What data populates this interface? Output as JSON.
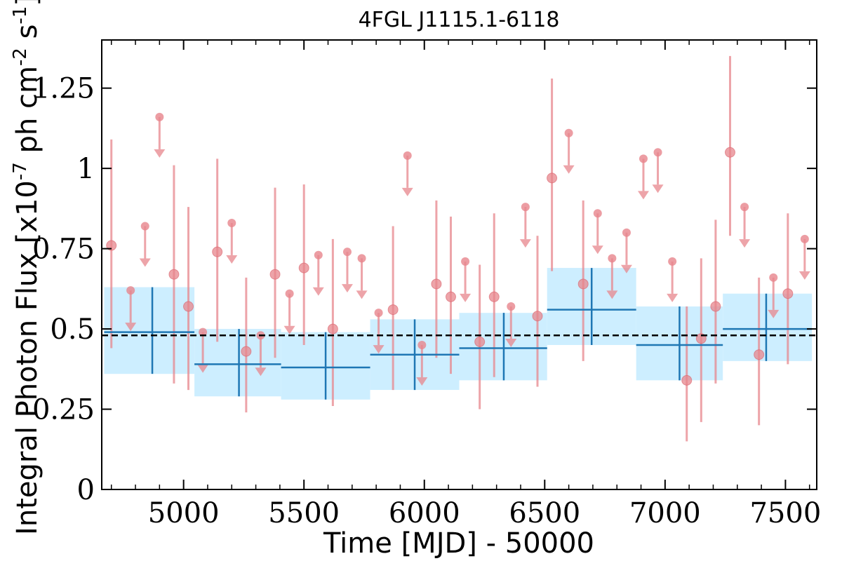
{
  "chart_data": {
    "type": "scatter",
    "title": "4FGL J1115.1-6118",
    "xlabel": "Time [MJD] - 50000",
    "ylabel": "Integral Photon Flux [x10^-7 ph cm^-2 s^-1]",
    "xlim": [
      4660,
      7630
    ],
    "ylim": [
      0,
      1.4
    ],
    "xticks": [
      5000,
      5500,
      6000,
      6500,
      7000,
      7500
    ],
    "xtick_labels": [
      "5000",
      "5500",
      "6000",
      "6500",
      "7000",
      "7500"
    ],
    "yticks": [
      0,
      0.25,
      0.5,
      0.75,
      1,
      1.25
    ],
    "ytick_labels": [
      "0",
      "0.25",
      "0.5",
      "0.75",
      "1",
      "1.25"
    ],
    "grid": false,
    "mean_flux": 0.48,
    "colors": {
      "points": "#e7858c",
      "long_bins": "#1f77b4",
      "band": "#cdeeff",
      "mean_line": "#000000"
    },
    "detections": [
      {
        "x": 4700,
        "y": 0.76,
        "ylo": 0.44,
        "yhi": 1.09
      },
      {
        "x": 4960,
        "y": 0.67,
        "ylo": 0.33,
        "yhi": 1.01
      },
      {
        "x": 5020,
        "y": 0.57,
        "ylo": 0.31,
        "yhi": 0.88
      },
      {
        "x": 5140,
        "y": 0.74,
        "ylo": 0.46,
        "yhi": 1.03
      },
      {
        "x": 5260,
        "y": 0.43,
        "ylo": 0.24,
        "yhi": 0.66
      },
      {
        "x": 5380,
        "y": 0.67,
        "ylo": 0.41,
        "yhi": 0.94
      },
      {
        "x": 5500,
        "y": 0.69,
        "ylo": 0.45,
        "yhi": 0.95
      },
      {
        "x": 5620,
        "y": 0.5,
        "ylo": 0.26,
        "yhi": 0.78
      },
      {
        "x": 5870,
        "y": 0.56,
        "ylo": 0.31,
        "yhi": 0.82
      },
      {
        "x": 6050,
        "y": 0.64,
        "ylo": 0.41,
        "yhi": 0.9
      },
      {
        "x": 6110,
        "y": 0.6,
        "ylo": 0.36,
        "yhi": 0.85
      },
      {
        "x": 6230,
        "y": 0.46,
        "ylo": 0.25,
        "yhi": 0.7
      },
      {
        "x": 6290,
        "y": 0.6,
        "ylo": 0.35,
        "yhi": 0.86
      },
      {
        "x": 6470,
        "y": 0.54,
        "ylo": 0.32,
        "yhi": 0.79
      },
      {
        "x": 6530,
        "y": 0.97,
        "ylo": 0.68,
        "yhi": 1.28
      },
      {
        "x": 6660,
        "y": 0.64,
        "ylo": 0.4,
        "yhi": 0.9
      },
      {
        "x": 7090,
        "y": 0.34,
        "ylo": 0.15,
        "yhi": 0.57
      },
      {
        "x": 7150,
        "y": 0.47,
        "ylo": 0.21,
        "yhi": 0.72
      },
      {
        "x": 7210,
        "y": 0.57,
        "ylo": 0.33,
        "yhi": 0.84
      },
      {
        "x": 7270,
        "y": 1.05,
        "ylo": 0.79,
        "yhi": 1.35
      },
      {
        "x": 7390,
        "y": 0.42,
        "ylo": 0.2,
        "yhi": 0.66
      },
      {
        "x": 7510,
        "y": 0.61,
        "ylo": 0.39,
        "yhi": 0.86
      }
    ],
    "upper_limits": [
      {
        "x": 4780,
        "y": 0.62
      },
      {
        "x": 4840,
        "y": 0.82
      },
      {
        "x": 4900,
        "y": 1.16
      },
      {
        "x": 5080,
        "y": 0.49
      },
      {
        "x": 5200,
        "y": 0.83
      },
      {
        "x": 5320,
        "y": 0.48
      },
      {
        "x": 5440,
        "y": 0.61
      },
      {
        "x": 5560,
        "y": 0.73
      },
      {
        "x": 5680,
        "y": 0.74
      },
      {
        "x": 5740,
        "y": 0.72
      },
      {
        "x": 5810,
        "y": 0.55
      },
      {
        "x": 5930,
        "y": 1.04
      },
      {
        "x": 5990,
        "y": 0.45
      },
      {
        "x": 6170,
        "y": 0.71
      },
      {
        "x": 6360,
        "y": 0.57
      },
      {
        "x": 6420,
        "y": 0.88
      },
      {
        "x": 6600,
        "y": 1.11
      },
      {
        "x": 6720,
        "y": 0.86
      },
      {
        "x": 6780,
        "y": 0.72
      },
      {
        "x": 6840,
        "y": 0.8
      },
      {
        "x": 6910,
        "y": 1.03
      },
      {
        "x": 6970,
        "y": 1.05
      },
      {
        "x": 7030,
        "y": 0.71
      },
      {
        "x": 7330,
        "y": 0.88
      },
      {
        "x": 7450,
        "y": 0.66
      },
      {
        "x": 7580,
        "y": 0.78
      }
    ],
    "long_bins": [
      {
        "x0": 4670,
        "x1": 5045,
        "y": 0.49,
        "ylo": 0.36,
        "yhi": 0.63,
        "xc": 4870
      },
      {
        "x0": 5045,
        "x1": 5405,
        "y": 0.39,
        "ylo": 0.29,
        "yhi": 0.5,
        "xc": 5230
      },
      {
        "x0": 5405,
        "x1": 5775,
        "y": 0.38,
        "ylo": 0.28,
        "yhi": 0.49,
        "xc": 5590
      },
      {
        "x0": 5775,
        "x1": 6145,
        "y": 0.42,
        "ylo": 0.31,
        "yhi": 0.53,
        "xc": 5960
      },
      {
        "x0": 6145,
        "x1": 6510,
        "y": 0.44,
        "ylo": 0.34,
        "yhi": 0.55,
        "xc": 6330
      },
      {
        "x0": 6510,
        "x1": 6880,
        "y": 0.56,
        "ylo": 0.45,
        "yhi": 0.69,
        "xc": 6695
      },
      {
        "x0": 6880,
        "x1": 7240,
        "y": 0.45,
        "ylo": 0.34,
        "yhi": 0.57,
        "xc": 7060
      },
      {
        "x0": 7240,
        "x1": 7610,
        "y": 0.5,
        "ylo": 0.4,
        "yhi": 0.61,
        "xc": 7420
      }
    ]
  }
}
